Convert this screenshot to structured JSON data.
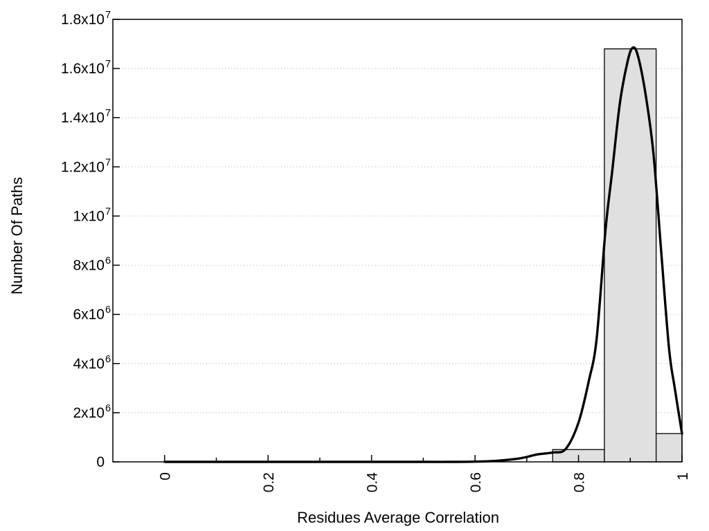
{
  "chart_data": {
    "type": "bar",
    "subtype": "histogram-with-fit-curve",
    "title": "",
    "xlabel": "Residues Average Correlation",
    "ylabel": "Number Of Paths",
    "xlim": [
      -0.1,
      1.0
    ],
    "ylim": [
      0,
      18000000
    ],
    "grid": "horizontal-dotted",
    "legend": "none",
    "x_axis": {
      "major_ticks": [
        0,
        0.2,
        0.4,
        0.6,
        0.8,
        1
      ],
      "major_tick_labels": [
        "0",
        "0.2",
        "0.4",
        "0.6",
        "0.8",
        "1"
      ],
      "minor_ticks": [
        0.1,
        0.3,
        0.5,
        0.7,
        0.9
      ],
      "label_rotation_deg": -90
    },
    "y_axis": {
      "ticks": [
        {
          "value": 0,
          "base": "0",
          "exp": ""
        },
        {
          "value": 2000000,
          "base": "2x10",
          "exp": "6"
        },
        {
          "value": 4000000,
          "base": "4x10",
          "exp": "6"
        },
        {
          "value": 6000000,
          "base": "6x10",
          "exp": "6"
        },
        {
          "value": 8000000,
          "base": "8x10",
          "exp": "6"
        },
        {
          "value": 10000000,
          "base": "1x10",
          "exp": "7"
        },
        {
          "value": 12000000,
          "base": "1.2x10",
          "exp": "7"
        },
        {
          "value": 14000000,
          "base": "1.4x10",
          "exp": "7"
        },
        {
          "value": 16000000,
          "base": "1.6x10",
          "exp": "7"
        },
        {
          "value": 18000000,
          "base": "1.8x10",
          "exp": "7"
        }
      ]
    },
    "bars": [
      {
        "x0": 0.75,
        "x1": 0.85,
        "value": 500000
      },
      {
        "x0": 0.85,
        "x1": 0.95,
        "value": 16800000
      },
      {
        "x0": 0.95,
        "x1": 1.0,
        "value": 1150000
      }
    ],
    "curve": {
      "name": "gaussian-fit",
      "approx_params": {
        "amplitude": 16850000,
        "mean": 0.9,
        "sigma": 0.045
      },
      "points": [
        [
          0.0,
          0
        ],
        [
          0.1,
          0
        ],
        [
          0.2,
          0
        ],
        [
          0.3,
          0
        ],
        [
          0.4,
          0
        ],
        [
          0.5,
          0
        ],
        [
          0.55,
          0
        ],
        [
          0.6,
          10000
        ],
        [
          0.64,
          40000
        ],
        [
          0.68,
          120000
        ],
        [
          0.7,
          200000
        ],
        [
          0.72,
          300000
        ],
        [
          0.75,
          380000
        ],
        [
          0.775,
          520000
        ],
        [
          0.8,
          1600000
        ],
        [
          0.82,
          3300000
        ],
        [
          0.835,
          5000000
        ],
        [
          0.852,
          9400000
        ],
        [
          0.865,
          11800000
        ],
        [
          0.88,
          14600000
        ],
        [
          0.895,
          16300000
        ],
        [
          0.905,
          16850000
        ],
        [
          0.915,
          16500000
        ],
        [
          0.93,
          14900000
        ],
        [
          0.945,
          12500000
        ],
        [
          0.96,
          8500000
        ],
        [
          0.975,
          4600000
        ],
        [
          0.986,
          3000000
        ],
        [
          1.0,
          1150000
        ]
      ]
    },
    "style": {
      "bar_fill": "#e0e0e0",
      "bar_border": "#000000",
      "curve_color": "#000000",
      "frame_color": "#000000",
      "grid_color": "#b8b8b8",
      "text_color": "#000000",
      "background": "#ffffff"
    }
  }
}
